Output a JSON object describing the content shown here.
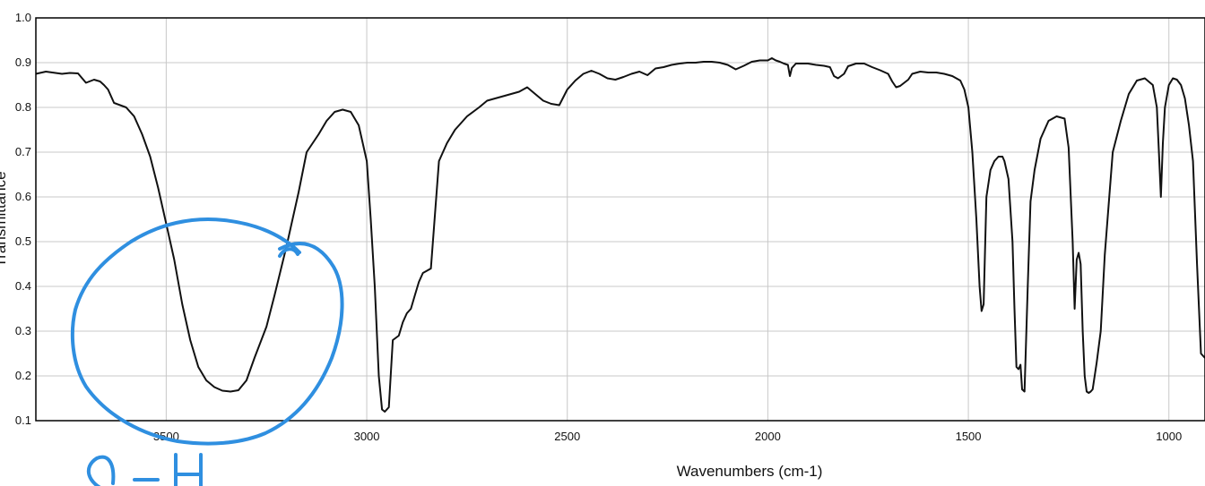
{
  "chart_data": {
    "type": "line",
    "title": "",
    "xlabel": "Wavenumbers (cm-1)",
    "ylabel": "Transmittance",
    "xlim": [
      3825,
      910
    ],
    "ylim": [
      0.1,
      1.0
    ],
    "x_ticks": [
      3500,
      3000,
      2500,
      2000,
      1500,
      1000
    ],
    "x_tick_labels": [
      "3500",
      "3000",
      "2500",
      "2000",
      "1500",
      "1000"
    ],
    "y_ticks": [
      0.1,
      0.2,
      0.3,
      0.4,
      0.5,
      0.6,
      0.7,
      0.8,
      0.9,
      1.0
    ],
    "y_tick_labels": [
      "0.1",
      "0.2",
      "0.3",
      "0.4",
      "0.5",
      "0.6",
      "0.7",
      "0.8",
      "0.9",
      "1.0"
    ],
    "grid": true,
    "series_color": "#111111",
    "series": [
      {
        "x": [
          3825,
          3800,
          3760,
          3740,
          3720,
          3700,
          3680,
          3665,
          3655,
          3645,
          3630,
          3600,
          3580,
          3560,
          3540,
          3520,
          3500,
          3480,
          3460,
          3440,
          3420,
          3400,
          3380,
          3360,
          3340,
          3320,
          3300,
          3280,
          3250,
          3230,
          3200,
          3170,
          3150,
          3120,
          3100,
          3080,
          3060,
          3040,
          3020,
          3010,
          3000,
          2990,
          2980,
          2970,
          2962,
          2955,
          2945,
          2935,
          2920,
          2910,
          2900,
          2890,
          2880,
          2870,
          2860,
          2850,
          2840,
          2820,
          2800,
          2780,
          2750,
          2720,
          2700,
          2680,
          2660,
          2640,
          2620,
          2600,
          2580,
          2560,
          2540,
          2520,
          2500,
          2480,
          2460,
          2440,
          2420,
          2400,
          2380,
          2360,
          2340,
          2320,
          2300,
          2280,
          2260,
          2240,
          2220,
          2200,
          2180,
          2160,
          2140,
          2120,
          2100,
          2080,
          2060,
          2040,
          2020,
          2000,
          1990,
          1980,
          1970,
          1960,
          1950,
          1945,
          1940,
          1930,
          1920,
          1900,
          1880,
          1860,
          1845,
          1835,
          1825,
          1810,
          1800,
          1780,
          1760,
          1740,
          1720,
          1700,
          1690,
          1680,
          1670,
          1650,
          1640,
          1620,
          1600,
          1580,
          1560,
          1540,
          1520,
          1510,
          1500,
          1490,
          1480,
          1472,
          1467,
          1462,
          1455,
          1445,
          1435,
          1425,
          1415,
          1410,
          1400,
          1390,
          1385,
          1380,
          1375,
          1370,
          1366,
          1360,
          1352,
          1345,
          1335,
          1320,
          1300,
          1280,
          1260,
          1250,
          1240,
          1235,
          1230,
          1225,
          1220,
          1215,
          1210,
          1205,
          1200,
          1195,
          1190,
          1180,
          1170,
          1160,
          1140,
          1120,
          1100,
          1080,
          1060,
          1040,
          1030,
          1025,
          1020,
          1015,
          1010,
          1000,
          990,
          980,
          970,
          960,
          950,
          940,
          930,
          920,
          910
        ],
        "y": [
          0.875,
          0.88,
          0.875,
          0.877,
          0.876,
          0.855,
          0.862,
          0.858,
          0.85,
          0.84,
          0.81,
          0.8,
          0.78,
          0.74,
          0.69,
          0.62,
          0.54,
          0.46,
          0.36,
          0.28,
          0.22,
          0.19,
          0.175,
          0.167,
          0.165,
          0.168,
          0.19,
          0.24,
          0.31,
          0.38,
          0.49,
          0.61,
          0.7,
          0.74,
          0.77,
          0.79,
          0.795,
          0.79,
          0.76,
          0.72,
          0.68,
          0.55,
          0.4,
          0.2,
          0.125,
          0.12,
          0.13,
          0.28,
          0.29,
          0.32,
          0.34,
          0.35,
          0.38,
          0.41,
          0.43,
          0.435,
          0.44,
          0.68,
          0.72,
          0.75,
          0.78,
          0.8,
          0.815,
          0.82,
          0.825,
          0.83,
          0.835,
          0.845,
          0.83,
          0.815,
          0.808,
          0.805,
          0.84,
          0.86,
          0.875,
          0.882,
          0.875,
          0.865,
          0.862,
          0.868,
          0.875,
          0.88,
          0.872,
          0.887,
          0.89,
          0.895,
          0.898,
          0.9,
          0.9,
          0.902,
          0.902,
          0.9,
          0.895,
          0.885,
          0.893,
          0.902,
          0.905,
          0.905,
          0.91,
          0.905,
          0.902,
          0.898,
          0.895,
          0.87,
          0.888,
          0.898,
          0.898,
          0.898,
          0.895,
          0.893,
          0.89,
          0.87,
          0.865,
          0.875,
          0.892,
          0.898,
          0.898,
          0.89,
          0.883,
          0.875,
          0.858,
          0.845,
          0.848,
          0.862,
          0.875,
          0.88,
          0.878,
          0.878,
          0.875,
          0.87,
          0.86,
          0.84,
          0.8,
          0.7,
          0.55,
          0.4,
          0.345,
          0.36,
          0.6,
          0.66,
          0.68,
          0.69,
          0.69,
          0.68,
          0.64,
          0.5,
          0.35,
          0.22,
          0.215,
          0.225,
          0.17,
          0.165,
          0.4,
          0.59,
          0.66,
          0.73,
          0.77,
          0.78,
          0.775,
          0.71,
          0.5,
          0.35,
          0.46,
          0.475,
          0.45,
          0.3,
          0.2,
          0.165,
          0.162,
          0.165,
          0.17,
          0.23,
          0.3,
          0.47,
          0.7,
          0.77,
          0.83,
          0.86,
          0.865,
          0.85,
          0.8,
          0.7,
          0.6,
          0.72,
          0.8,
          0.85,
          0.865,
          0.862,
          0.85,
          0.82,
          0.76,
          0.68,
          0.45,
          0.25,
          0.24
        ]
      }
    ]
  },
  "annotation": {
    "pen_color": "#2f8fe0",
    "handwritten_text": "O-H"
  }
}
